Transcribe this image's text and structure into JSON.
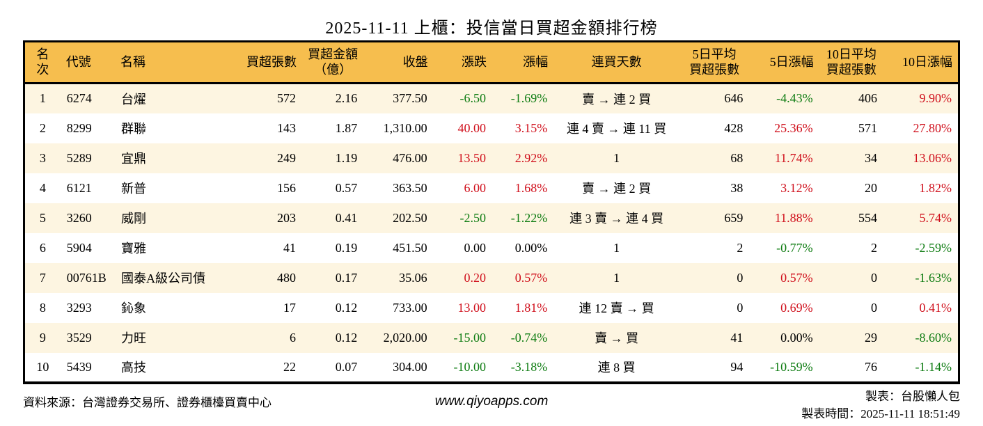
{
  "title": "2025-11-11 上櫃：投信當日買超金額排行榜",
  "colors": {
    "up": "#d0101c",
    "down": "#0e7c12",
    "flat": "#000000",
    "header_bg": "#f6be4e",
    "row_alt_bg": "#fdf5e1",
    "border": "#000000"
  },
  "chart_data": {
    "type": "table",
    "title": "2025-11-11 上櫃：投信當日買超金額排行榜",
    "columns": [
      {
        "key": "rank",
        "label": "名次",
        "align": "center"
      },
      {
        "key": "code",
        "label": "代號",
        "align": "left"
      },
      {
        "key": "name",
        "label": "名稱",
        "align": "left"
      },
      {
        "key": "volume",
        "label": "買超張數",
        "align": "right"
      },
      {
        "key": "amount",
        "label": "買超金額\n（億）",
        "align": "right",
        "header_align": "center"
      },
      {
        "key": "close",
        "label": "收盤",
        "align": "right"
      },
      {
        "key": "change",
        "label": "漲跌",
        "align": "right",
        "dir_key": "change_dir"
      },
      {
        "key": "change_pct",
        "label": "漲幅",
        "align": "right",
        "dir_key": "change_pct_dir"
      },
      {
        "key": "streak",
        "label": "連買天數",
        "align": "center"
      },
      {
        "key": "avg5",
        "label": "5日平均\n買超張數",
        "align": "right",
        "header_align": "center"
      },
      {
        "key": "pct5",
        "label": "5日漲幅",
        "align": "right",
        "dir_key": "pct5_dir"
      },
      {
        "key": "avg10",
        "label": "10日平均\n買超張數",
        "align": "right",
        "header_align": "center"
      },
      {
        "key": "pct10",
        "label": "10日漲幅",
        "align": "right",
        "dir_key": "pct10_dir"
      }
    ],
    "rows": [
      {
        "rank": "1",
        "code": "6274",
        "name": "台燿",
        "volume": "572",
        "amount": "2.16",
        "close": "377.50",
        "change": "-6.50",
        "change_dir": "down",
        "change_pct": "-1.69%",
        "change_pct_dir": "down",
        "streak": "賣 → 連 2 買",
        "avg5": "646",
        "pct5": "-4.43%",
        "pct5_dir": "down",
        "avg10": "406",
        "pct10": "9.90%",
        "pct10_dir": "up"
      },
      {
        "rank": "2",
        "code": "8299",
        "name": "群聯",
        "volume": "143",
        "amount": "1.87",
        "close": "1,310.00",
        "change": "40.00",
        "change_dir": "up",
        "change_pct": "3.15%",
        "change_pct_dir": "up",
        "streak": "連 4 賣 → 連 11 買",
        "avg5": "428",
        "pct5": "25.36%",
        "pct5_dir": "up",
        "avg10": "571",
        "pct10": "27.80%",
        "pct10_dir": "up"
      },
      {
        "rank": "3",
        "code": "5289",
        "name": "宜鼎",
        "volume": "249",
        "amount": "1.19",
        "close": "476.00",
        "change": "13.50",
        "change_dir": "up",
        "change_pct": "2.92%",
        "change_pct_dir": "up",
        "streak": "1",
        "avg5": "68",
        "pct5": "11.74%",
        "pct5_dir": "up",
        "avg10": "34",
        "pct10": "13.06%",
        "pct10_dir": "up"
      },
      {
        "rank": "4",
        "code": "6121",
        "name": "新普",
        "volume": "156",
        "amount": "0.57",
        "close": "363.50",
        "change": "6.00",
        "change_dir": "up",
        "change_pct": "1.68%",
        "change_pct_dir": "up",
        "streak": "賣 → 連 2 買",
        "avg5": "38",
        "pct5": "3.12%",
        "pct5_dir": "up",
        "avg10": "20",
        "pct10": "1.82%",
        "pct10_dir": "up"
      },
      {
        "rank": "5",
        "code": "3260",
        "name": "威剛",
        "volume": "203",
        "amount": "0.41",
        "close": "202.50",
        "change": "-2.50",
        "change_dir": "down",
        "change_pct": "-1.22%",
        "change_pct_dir": "down",
        "streak": "連 3 賣 → 連 4 買",
        "avg5": "659",
        "pct5": "11.88%",
        "pct5_dir": "up",
        "avg10": "554",
        "pct10": "5.74%",
        "pct10_dir": "up"
      },
      {
        "rank": "6",
        "code": "5904",
        "name": "寶雅",
        "volume": "41",
        "amount": "0.19",
        "close": "451.50",
        "change": "0.00",
        "change_dir": "flat",
        "change_pct": "0.00%",
        "change_pct_dir": "flat",
        "streak": "1",
        "avg5": "2",
        "pct5": "-0.77%",
        "pct5_dir": "down",
        "avg10": "2",
        "pct10": "-2.59%",
        "pct10_dir": "down"
      },
      {
        "rank": "7",
        "code": "00761B",
        "name": "國泰A級公司債",
        "volume": "480",
        "amount": "0.17",
        "close": "35.06",
        "change": "0.20",
        "change_dir": "up",
        "change_pct": "0.57%",
        "change_pct_dir": "up",
        "streak": "1",
        "avg5": "0",
        "pct5": "0.57%",
        "pct5_dir": "up",
        "avg10": "0",
        "pct10": "-1.63%",
        "pct10_dir": "down"
      },
      {
        "rank": "8",
        "code": "3293",
        "name": "鈊象",
        "volume": "17",
        "amount": "0.12",
        "close": "733.00",
        "change": "13.00",
        "change_dir": "up",
        "change_pct": "1.81%",
        "change_pct_dir": "up",
        "streak": "連 12 賣 → 買",
        "avg5": "0",
        "pct5": "0.69%",
        "pct5_dir": "up",
        "avg10": "0",
        "pct10": "0.41%",
        "pct10_dir": "up"
      },
      {
        "rank": "9",
        "code": "3529",
        "name": "力旺",
        "volume": "6",
        "amount": "0.12",
        "close": "2,020.00",
        "change": "-15.00",
        "change_dir": "down",
        "change_pct": "-0.74%",
        "change_pct_dir": "down",
        "streak": "賣 → 買",
        "avg5": "41",
        "pct5": "0.00%",
        "pct5_dir": "flat",
        "avg10": "29",
        "pct10": "-8.60%",
        "pct10_dir": "down"
      },
      {
        "rank": "10",
        "code": "5439",
        "name": "高技",
        "volume": "22",
        "amount": "0.07",
        "close": "304.00",
        "change": "-10.00",
        "change_dir": "down",
        "change_pct": "-3.18%",
        "change_pct_dir": "down",
        "streak": "連 8 買",
        "avg5": "94",
        "pct5": "-10.59%",
        "pct5_dir": "down",
        "avg10": "76",
        "pct10": "-1.14%",
        "pct10_dir": "down"
      }
    ]
  },
  "footer": {
    "source": "資料來源：台灣證券交易所、證券櫃檯買賣中心",
    "website": "www.qiyoapps.com",
    "author": "製表：台股懶人包",
    "generated": "製表時間：2025-11-11 18:51:49"
  }
}
